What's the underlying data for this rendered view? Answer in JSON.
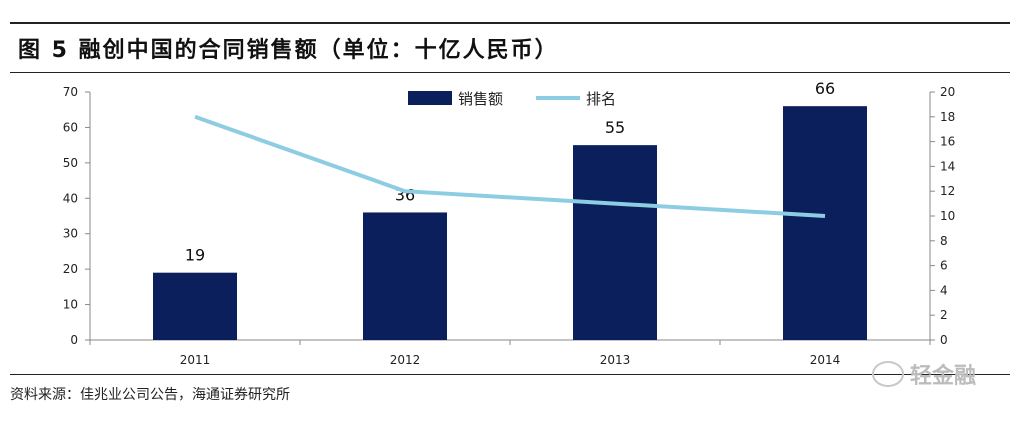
{
  "title": "图 5   融创中国的合同销售额（单位：十亿人民币）",
  "source": "资料来源：佳兆业公司公告，海通证券研究所",
  "watermark": "轻金融",
  "colors": {
    "bar": "#0b1f5c",
    "line": "#8dcde3"
  },
  "chart_data": {
    "type": "bar",
    "categories": [
      "2011",
      "2012",
      "2013",
      "2014"
    ],
    "series": [
      {
        "name": "销售额",
        "type": "bar",
        "axis": "left",
        "values": [
          19,
          36,
          55,
          66
        ]
      },
      {
        "name": "排名",
        "type": "line",
        "axis": "right",
        "values": [
          18,
          12,
          11,
          10
        ]
      }
    ],
    "y_left": {
      "min": 0,
      "max": 70,
      "ticks": [
        0,
        10,
        20,
        30,
        40,
        50,
        60,
        70
      ]
    },
    "y_right": {
      "min": 0,
      "max": 20,
      "ticks": [
        0,
        2,
        4,
        6,
        8,
        10,
        12,
        14,
        16,
        18,
        20
      ]
    },
    "data_labels": [
      "19",
      "36",
      "55",
      "66"
    ],
    "legend_position": "top-center",
    "grid": false
  }
}
